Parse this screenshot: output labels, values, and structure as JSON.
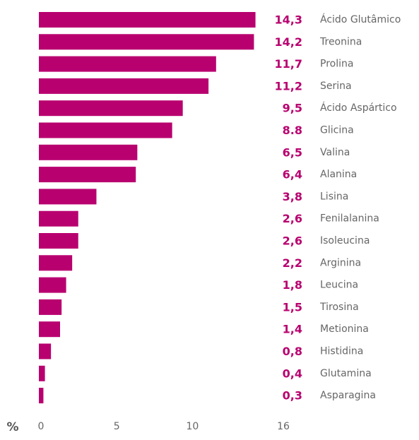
{
  "chart_data": {
    "type": "bar",
    "orientation": "horizontal",
    "x_label": "%",
    "categories": [
      "Ácido Glutâmico",
      "Treonina",
      "Prolina",
      "Serina",
      "Ácido Aspártico",
      "Glicina",
      "Valina",
      "Alanina",
      "Lisina",
      "Fenilalanina",
      "Isoleucina",
      "Arginina",
      "Leucina",
      "Tirosina",
      "Metionina",
      "Histidina",
      "Glutamina",
      "Asparagina"
    ],
    "values": [
      14.3,
      14.2,
      11.7,
      11.2,
      9.5,
      8.8,
      6.5,
      6.4,
      3.8,
      2.6,
      2.6,
      2.2,
      1.8,
      1.5,
      1.4,
      0.8,
      0.4,
      0.3
    ],
    "value_labels": [
      "14,3",
      "14,2",
      "11,7",
      "11,2",
      "9,5",
      "8.8",
      "6,5",
      "6,4",
      "3,8",
      "2,6",
      "2,6",
      "2,2",
      "1,8",
      "1,5",
      "1,4",
      "0,8",
      "0,4",
      "0,3"
    ],
    "color": "#b8006f",
    "xlim": [
      0,
      16
    ],
    "xticks": [
      0,
      5,
      10,
      16
    ],
    "grid": false
  }
}
